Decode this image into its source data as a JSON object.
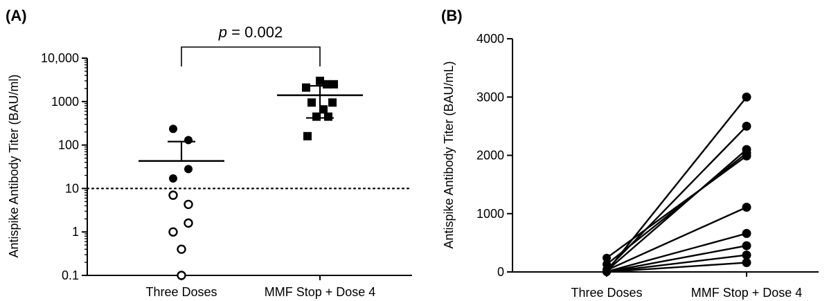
{
  "chart_data": [
    {
      "panel_label": "(A)",
      "type": "scatter",
      "y_scale": "log",
      "ylabel": "Antispike Antibody Titer (BAU/ml)",
      "ylim": [
        0.1,
        10000
      ],
      "y_ticks": [
        0.1,
        1,
        10,
        100,
        1000,
        10000
      ],
      "y_tick_labels": [
        "0.1",
        "1",
        "10",
        "100",
        "1000",
        "10,000"
      ],
      "categories": [
        "Three Doses",
        "MMF Stop + Dose 4"
      ],
      "threshold": 10,
      "threshold_style": "dotted",
      "annotation": {
        "italic": "p",
        "text": " = 0.002"
      },
      "series": [
        {
          "category": "Three Doses",
          "points": [
            {
              "dx": -0.12,
              "y": 235,
              "marker": "filled-circle"
            },
            {
              "dx": 0.1,
              "y": 130,
              "marker": "filled-circle"
            },
            {
              "dx": 0.1,
              "y": 28,
              "marker": "filled-circle"
            },
            {
              "dx": -0.12,
              "y": 17,
              "marker": "filled-circle"
            },
            {
              "dx": -0.12,
              "y": 7,
              "marker": "open-circle"
            },
            {
              "dx": 0.1,
              "y": 4.3,
              "marker": "open-circle"
            },
            {
              "dx": 0.1,
              "y": 1.6,
              "marker": "open-circle"
            },
            {
              "dx": -0.12,
              "y": 1.0,
              "marker": "open-circle"
            },
            {
              "dx": 0.0,
              "y": 0.4,
              "marker": "open-circle"
            },
            {
              "dx": 0.0,
              "y": 0.1,
              "marker": "open-circle"
            }
          ],
          "summary": {
            "center": 43,
            "upper": 120
          }
        },
        {
          "category": "MMF Stop + Dose 4",
          "points": [
            {
              "dx": 0.0,
              "y": 3000,
              "marker": "filled-square"
            },
            {
              "dx": 0.1,
              "y": 2500,
              "marker": "filled-square"
            },
            {
              "dx": 0.2,
              "y": 2500,
              "marker": "filled-square"
            },
            {
              "dx": -0.2,
              "y": 2100,
              "marker": "filled-square"
            },
            {
              "dx": -0.12,
              "y": 950,
              "marker": "filled-square"
            },
            {
              "dx": 0.05,
              "y": 660,
              "marker": "filled-square"
            },
            {
              "dx": -0.05,
              "y": 450,
              "marker": "filled-square"
            },
            {
              "dx": 0.12,
              "y": 450,
              "marker": "filled-square"
            },
            {
              "dx": 0.18,
              "y": 950,
              "marker": "filled-square"
            },
            {
              "dx": -0.18,
              "y": 160,
              "marker": "filled-square"
            }
          ],
          "summary": {
            "center": 1400,
            "upper": 2300,
            "lower": 420
          }
        }
      ]
    },
    {
      "panel_label": "(B)",
      "type": "line",
      "ylabel": "Antispike Antibody Titer (BAU/mL)",
      "ylim": [
        0,
        4000
      ],
      "y_ticks": [
        0,
        1000,
        2000,
        3000,
        4000
      ],
      "y_tick_labels": [
        "0",
        "1000",
        "2000",
        "3000",
        "4000"
      ],
      "categories": [
        "Three Doses",
        "MMF Stop + Dose 4"
      ],
      "pairs": [
        {
          "before": 10,
          "after": 3000
        },
        {
          "before": 40,
          "after": 2500
        },
        {
          "before": 20,
          "after": 2100
        },
        {
          "before": 130,
          "after": 2040
        },
        {
          "before": 240,
          "after": 1990
        },
        {
          "before": 30,
          "after": 1110
        },
        {
          "before": 5,
          "after": 660
        },
        {
          "before": 2,
          "after": 450
        },
        {
          "before": 1,
          "after": 290
        },
        {
          "before": 1,
          "after": 160
        }
      ]
    }
  ]
}
